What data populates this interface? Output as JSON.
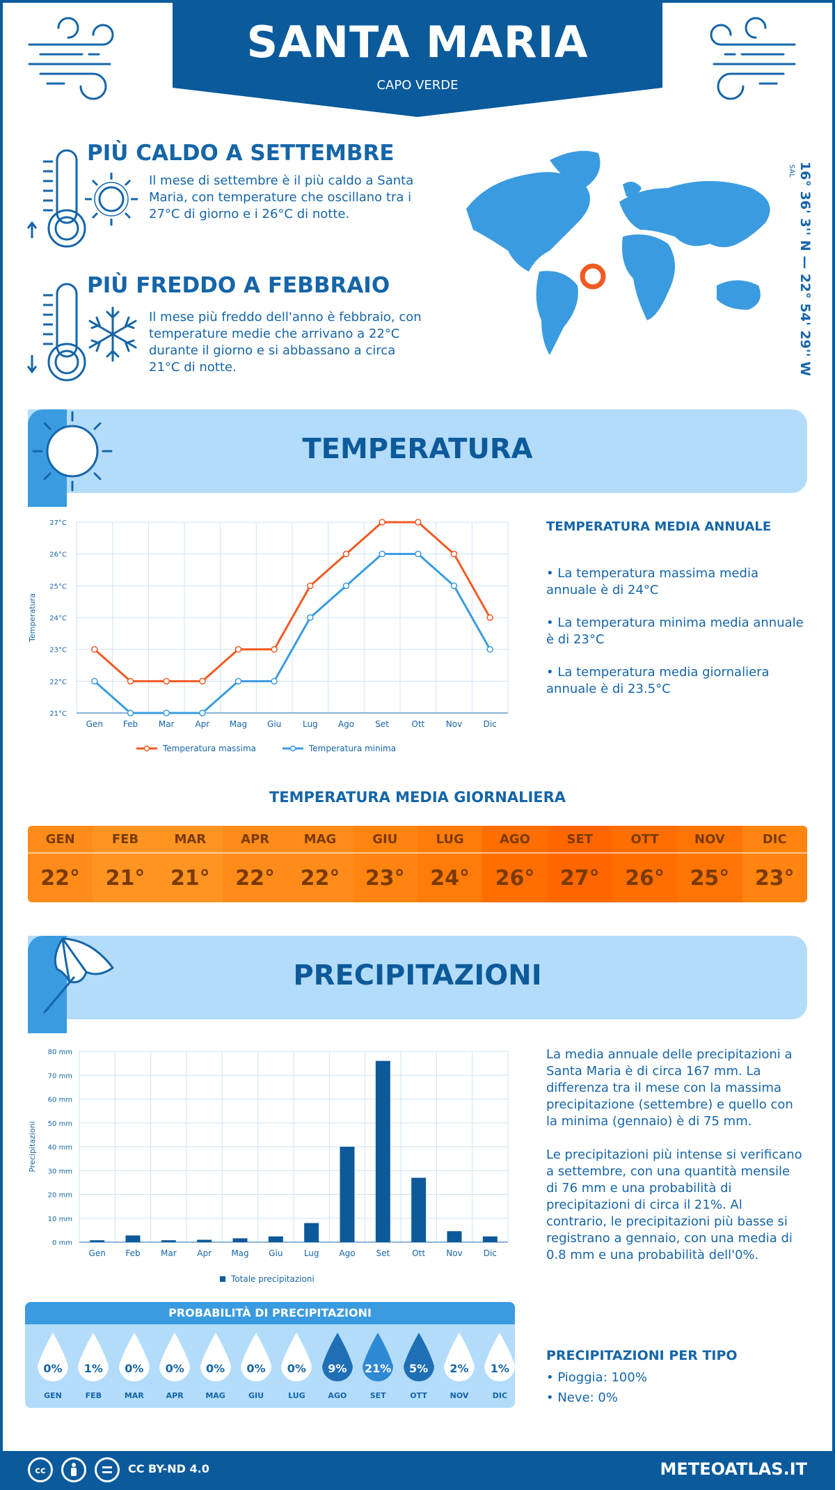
{
  "header": {
    "city": "SANTA MARIA",
    "country": "CAPO VERDE"
  },
  "warmest": {
    "title": "PIÙ CALDO A SETTEMBRE",
    "text": "Il mese di settembre è il più caldo a Santa Maria, con temperature che oscillano tra i 27°C di giorno e i 26°C di notte."
  },
  "coldest": {
    "title": "PIÙ FREDDO A FEBBRAIO",
    "text": "Il mese più freddo dell'anno è febbraio, con temperature medie che arrivano a 22°C durante il giorno e si abbassano a circa 21°C di notte."
  },
  "location": {
    "coords": "16° 36' 3'' N — 22° 54' 29'' W",
    "island": "SAL"
  },
  "temperature_section": {
    "title": "TEMPERATURA",
    "side_title": "TEMPERATURA MEDIA ANNUALE",
    "bullets": [
      "• La temperatura massima media annuale è di 24°C",
      "• La temperatura minima media annuale è di 23°C",
      "• La temperatura media giornaliera annuale è di 23.5°C"
    ]
  },
  "daily": {
    "title": "TEMPERATURA MEDIA GIORNALIERA",
    "months": [
      "GEN",
      "FEB",
      "MAR",
      "APR",
      "MAG",
      "GIU",
      "LUG",
      "AGO",
      "SET",
      "OTT",
      "NOV",
      "DIC"
    ],
    "values": [
      "22°",
      "21°",
      "21°",
      "22°",
      "22°",
      "23°",
      "24°",
      "26°",
      "27°",
      "26°",
      "25°",
      "23°"
    ],
    "colors": [
      "#ff8c1a",
      "#ff9422",
      "#ff9422",
      "#ff8c1a",
      "#ff8c1a",
      "#ff8410",
      "#ff7c0a",
      "#ff6e00",
      "#ff6600",
      "#ff6e00",
      "#ff7505",
      "#ff8410"
    ]
  },
  "precip_section": {
    "title": "PRECIPITAZIONI",
    "paragraph1": "La media annuale delle precipitazioni a Santa Maria è di circa 167 mm. La differenza tra il mese con la massima precipitazione (settembre) e quello con la minima (gennaio) è di 75 mm.",
    "paragraph2": "Le precipitazioni più intense si verificano a settembre, con una quantità mensile di 76 mm e una probabilità di precipitazioni di circa il 21%. Al contrario, le precipitazioni più basse si registrano a gennaio, con una media di 0.8 mm e una probabilità dell'0%."
  },
  "probability": {
    "title": "PROBABILITÀ DI PRECIPITAZIONI",
    "months": [
      "GEN",
      "FEB",
      "MAR",
      "APR",
      "MAG",
      "GIU",
      "LUG",
      "AGO",
      "SET",
      "OTT",
      "NOV",
      "DIC"
    ],
    "values": [
      "0%",
      "1%",
      "0%",
      "0%",
      "0%",
      "0%",
      "0%",
      "9%",
      "21%",
      "5%",
      "2%",
      "1%"
    ],
    "fractions": [
      0,
      0.01,
      0,
      0,
      0,
      0,
      0,
      0.09,
      0.21,
      0.05,
      0.02,
      0.01
    ]
  },
  "precip_type": {
    "title": "PRECIPITAZIONI PER TIPO",
    "rain": "• Pioggia: 100%",
    "snow": "• Neve: 0%"
  },
  "footer": {
    "license": "CC BY-ND 4.0",
    "site": "METEOATLAS.IT"
  },
  "colors": {
    "primary": "#0a5a9c",
    "light": "#b3dcfb",
    "accent": "#3a9be0",
    "max_line": "#f05a22",
    "min_line": "#3a9be0",
    "bar": "#0d5a9a"
  },
  "chart_data": [
    {
      "type": "line",
      "categories": [
        "Gen",
        "Feb",
        "Mar",
        "Apr",
        "Mag",
        "Giu",
        "Lug",
        "Ago",
        "Set",
        "Ott",
        "Nov",
        "Dic"
      ],
      "series": [
        {
          "name": "Temperatura massima",
          "values": [
            23,
            22,
            22,
            22,
            23,
            23,
            25,
            26,
            27,
            27,
            26,
            24
          ]
        },
        {
          "name": "Temperatura minima",
          "values": [
            22,
            21,
            21,
            21,
            22,
            22,
            24,
            25,
            26,
            26,
            25,
            23
          ]
        }
      ],
      "ylabel": "Temperatura",
      "ylim": [
        21,
        27
      ],
      "yticks": [
        "21°C",
        "22°C",
        "23°C",
        "24°C",
        "25°C",
        "26°C",
        "27°C"
      ],
      "grid": true,
      "legend": "bottom"
    },
    {
      "type": "bar",
      "categories": [
        "Gen",
        "Feb",
        "Mar",
        "Apr",
        "Mag",
        "Giu",
        "Lug",
        "Ago",
        "Set",
        "Ott",
        "Nov",
        "Dic"
      ],
      "series": [
        {
          "name": "Totale precipitazioni",
          "values": [
            0.8,
            2.8,
            0.8,
            1,
            1.6,
            2.4,
            8,
            40,
            76,
            27,
            4.6,
            2.4
          ]
        }
      ],
      "ylabel": "Precipitazioni",
      "ylim": [
        0,
        80
      ],
      "yticks": [
        "0 mm",
        "10 mm",
        "20 mm",
        "30 mm",
        "40 mm",
        "50 mm",
        "60 mm",
        "70 mm",
        "80 mm"
      ],
      "grid": true,
      "legend": "bottom"
    }
  ]
}
